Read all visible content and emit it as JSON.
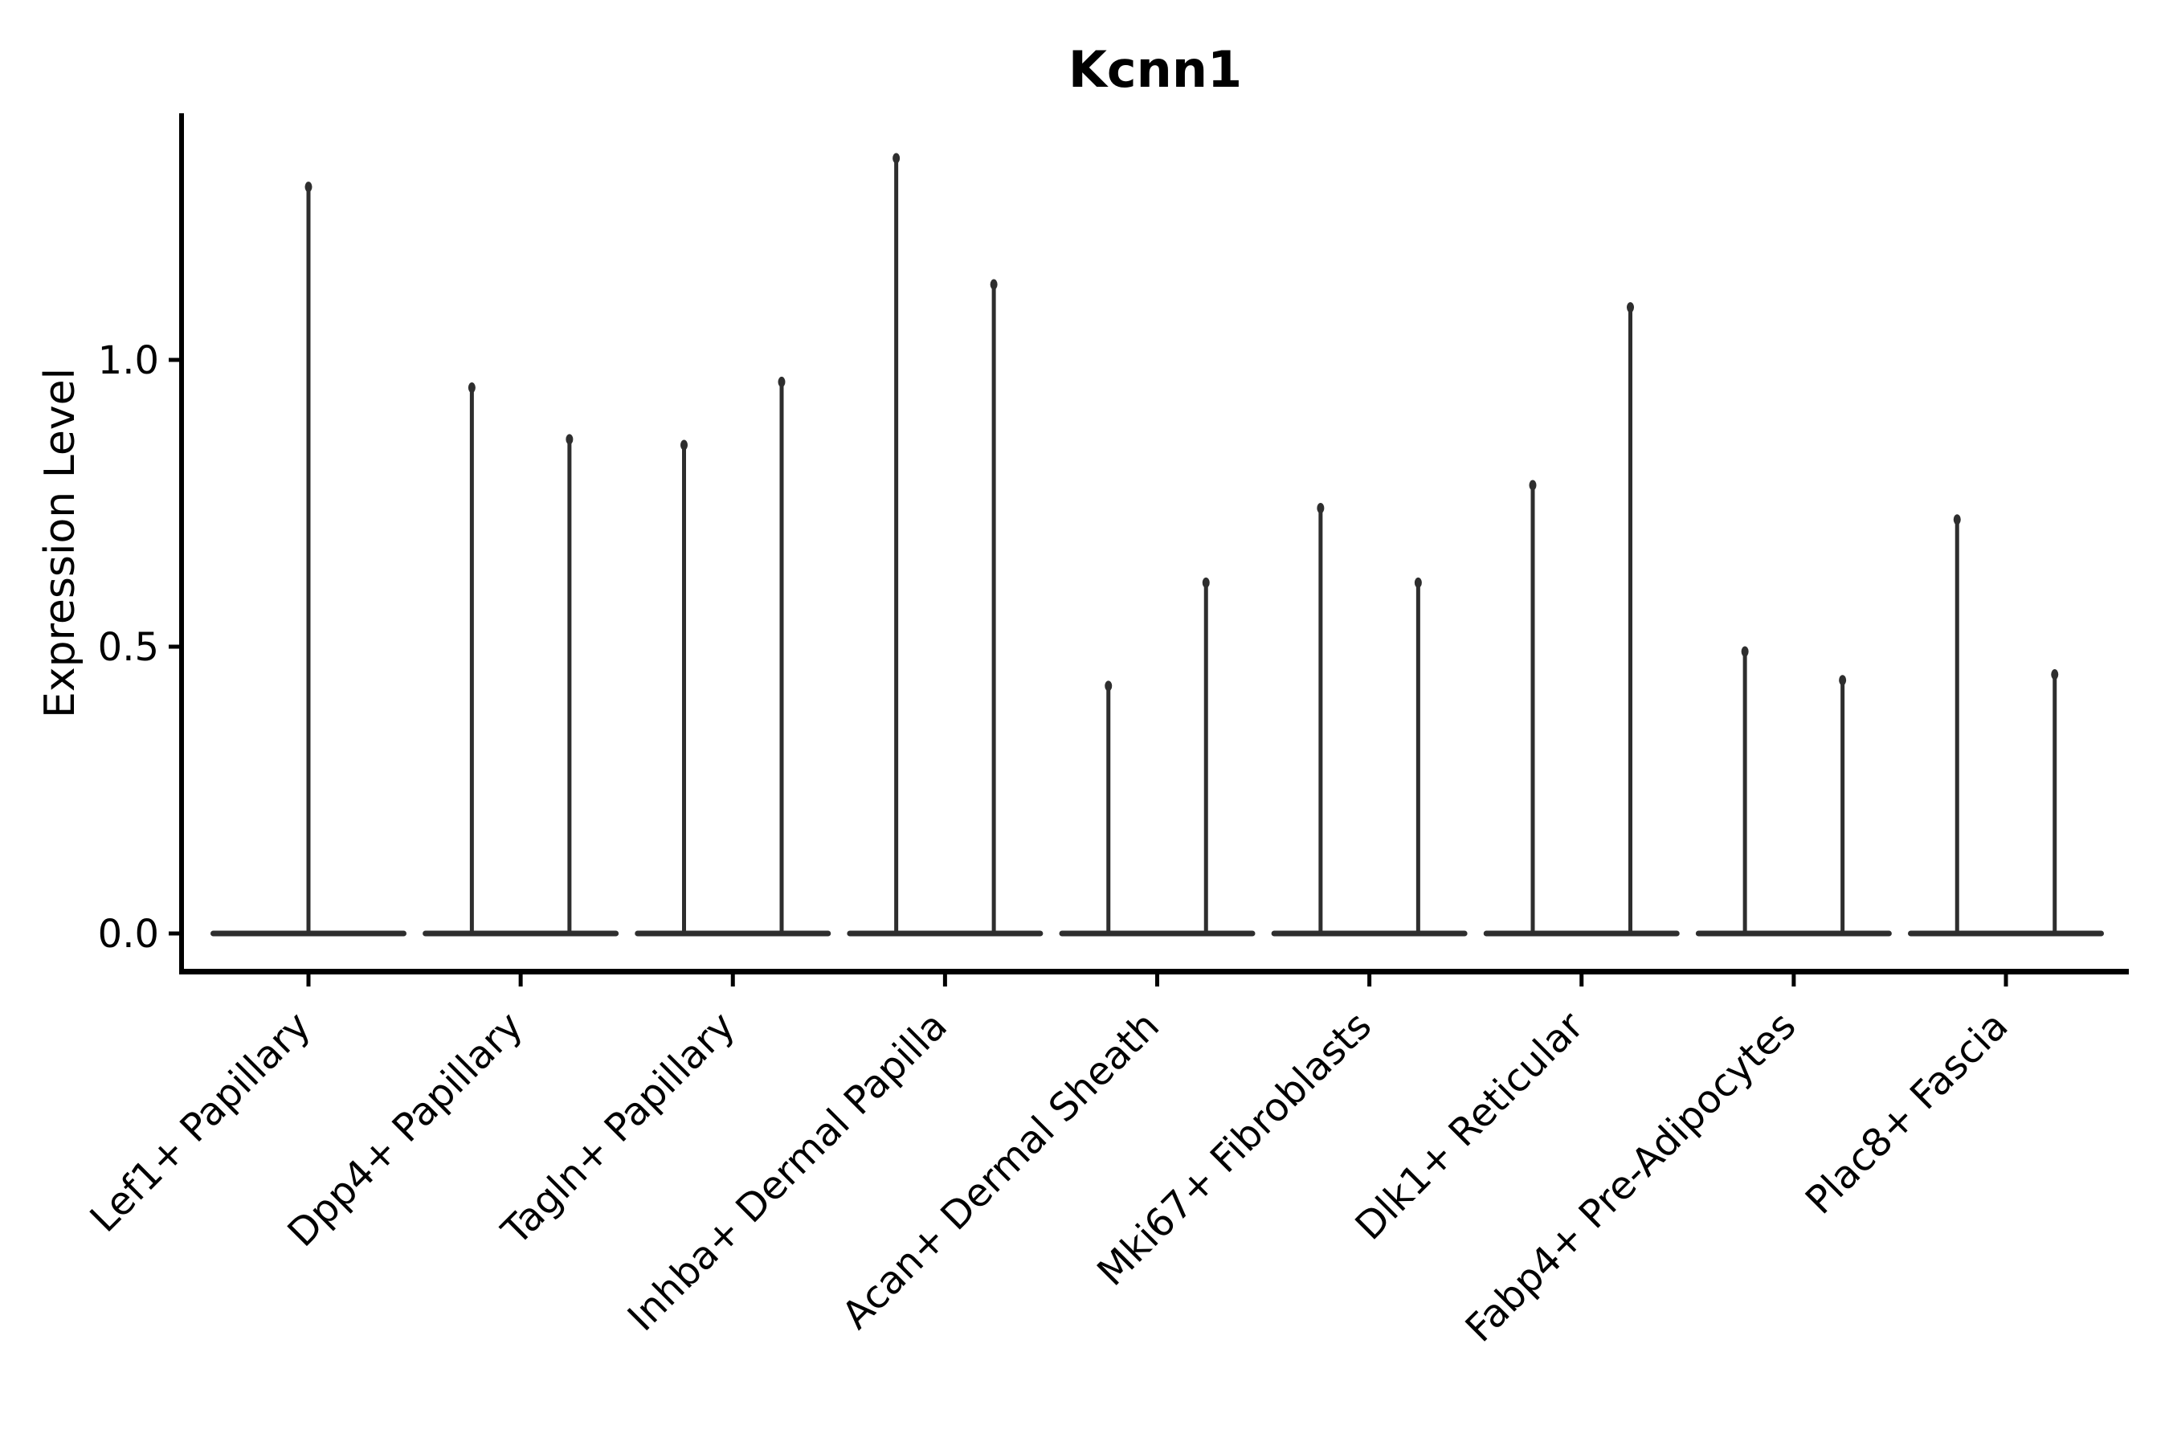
{
  "chart_data": {
    "type": "violin",
    "title": "Kcnn1",
    "ylabel": "Expression Level",
    "xlabel": "",
    "legend": null,
    "grid": false,
    "ytick_labels": [
      "0.0",
      "0.5",
      "1.0"
    ],
    "ytick_values": [
      0.0,
      0.5,
      1.0
    ],
    "ylim": [
      -0.07,
      1.43
    ],
    "categories": [
      "Lef1+ Papillary",
      "Dpp4+ Papillary",
      "Tagln+ Papillary",
      "Inhba+ Dermal Papilla",
      "Acan+ Dermal Sheath",
      "Mki67+ Fibroblasts",
      "Dlk1+ Reticular",
      "Fabp4+ Pre-Adipocytes",
      "Plac8+ Fascia"
    ],
    "violins": [
      {
        "category": "Lef1+ Papillary",
        "spike_positions": [
          0
        ],
        "spike_max": [
          1.31
        ]
      },
      {
        "category": "Dpp4+ Papillary",
        "spike_positions": [
          -0.23,
          0.23
        ],
        "spike_max": [
          0.96,
          0.87
        ]
      },
      {
        "category": "Tagln+ Papillary",
        "spike_positions": [
          -0.23,
          0.23
        ],
        "spike_max": [
          0.86,
          0.97
        ]
      },
      {
        "category": "Inhba+ Dermal Papilla",
        "spike_positions": [
          -0.23,
          0.23
        ],
        "spike_max": [
          1.36,
          1.14
        ]
      },
      {
        "category": "Acan+ Dermal Sheath",
        "spike_positions": [
          -0.23,
          0.23
        ],
        "spike_max": [
          0.44,
          0.62
        ]
      },
      {
        "category": "Mki67+ Fibroblasts",
        "spike_positions": [
          -0.23,
          0.23
        ],
        "spike_max": [
          0.75,
          0.62
        ]
      },
      {
        "category": "Dlk1+ Reticular",
        "spike_positions": [
          -0.23,
          0.23
        ],
        "spike_max": [
          0.79,
          1.1
        ]
      },
      {
        "category": "Fabp4+ Pre-Adipocytes",
        "spike_positions": [
          -0.23,
          0.23
        ],
        "spike_max": [
          0.5,
          0.45
        ]
      },
      {
        "category": "Plac8+ Fascia",
        "spike_positions": [
          -0.23,
          0.23
        ],
        "spike_max": [
          0.73,
          0.46
        ]
      }
    ],
    "baseline_value": 0.0,
    "colors": {
      "violin": "#2e2e2e",
      "axis": "#000000",
      "text": "#000000",
      "background": "#ffffff"
    }
  }
}
